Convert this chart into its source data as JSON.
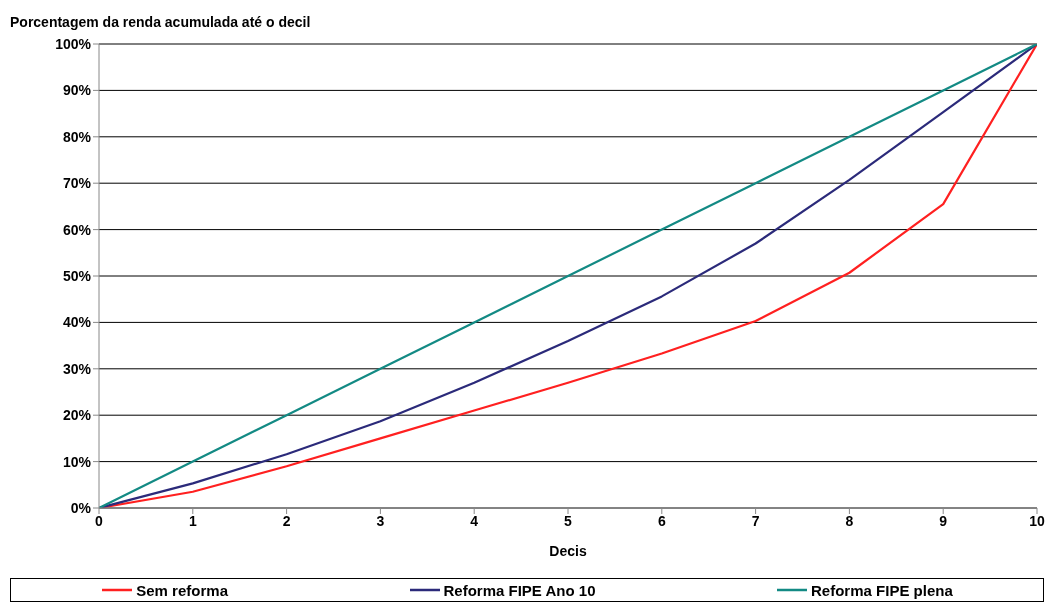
{
  "chart_data": {
    "type": "line",
    "ylabel": "Porcentagem da renda acumulada até o decil",
    "xlabel": "Decis",
    "x": [
      0,
      1,
      2,
      3,
      4,
      5,
      6,
      7,
      8,
      9,
      10
    ],
    "series": [
      {
        "name": "Sem reforma",
        "color": "#ff2020",
        "values": [
          0,
          3.5,
          9,
          15,
          21,
          27,
          33.3,
          40.3,
          50.7,
          65.5,
          100
        ]
      },
      {
        "name": "Reforma FIPE Ano 10",
        "color": "#2b2a7a",
        "values": [
          0,
          5.3,
          11.6,
          18.7,
          27,
          36,
          45.6,
          57,
          70.7,
          85.3,
          100
        ]
      },
      {
        "name": "Reforma FIPE plena",
        "color": "#138a84",
        "values": [
          0,
          10,
          20,
          30,
          40,
          50,
          60,
          70,
          80,
          90,
          100
        ]
      }
    ],
    "xlim": [
      0,
      10
    ],
    "xticks": [
      0,
      1,
      2,
      3,
      4,
      5,
      6,
      7,
      8,
      9,
      10
    ],
    "ylim": [
      0,
      100
    ],
    "yticks": [
      {
        "value": 0,
        "label": "0%"
      },
      {
        "value": 10,
        "label": "10%"
      },
      {
        "value": 20,
        "label": "20%"
      },
      {
        "value": 30,
        "label": "30%"
      },
      {
        "value": 40,
        "label": "40%"
      },
      {
        "value": 50,
        "label": "50%"
      },
      {
        "value": 60,
        "label": "60%"
      },
      {
        "value": 70,
        "label": "70%"
      },
      {
        "value": 80,
        "label": "80%"
      },
      {
        "value": 90,
        "label": "90%"
      },
      {
        "value": 100,
        "label": "100%"
      }
    ],
    "grid": "y",
    "legend": "bottom",
    "marker": "none",
    "line_style": "solid"
  }
}
